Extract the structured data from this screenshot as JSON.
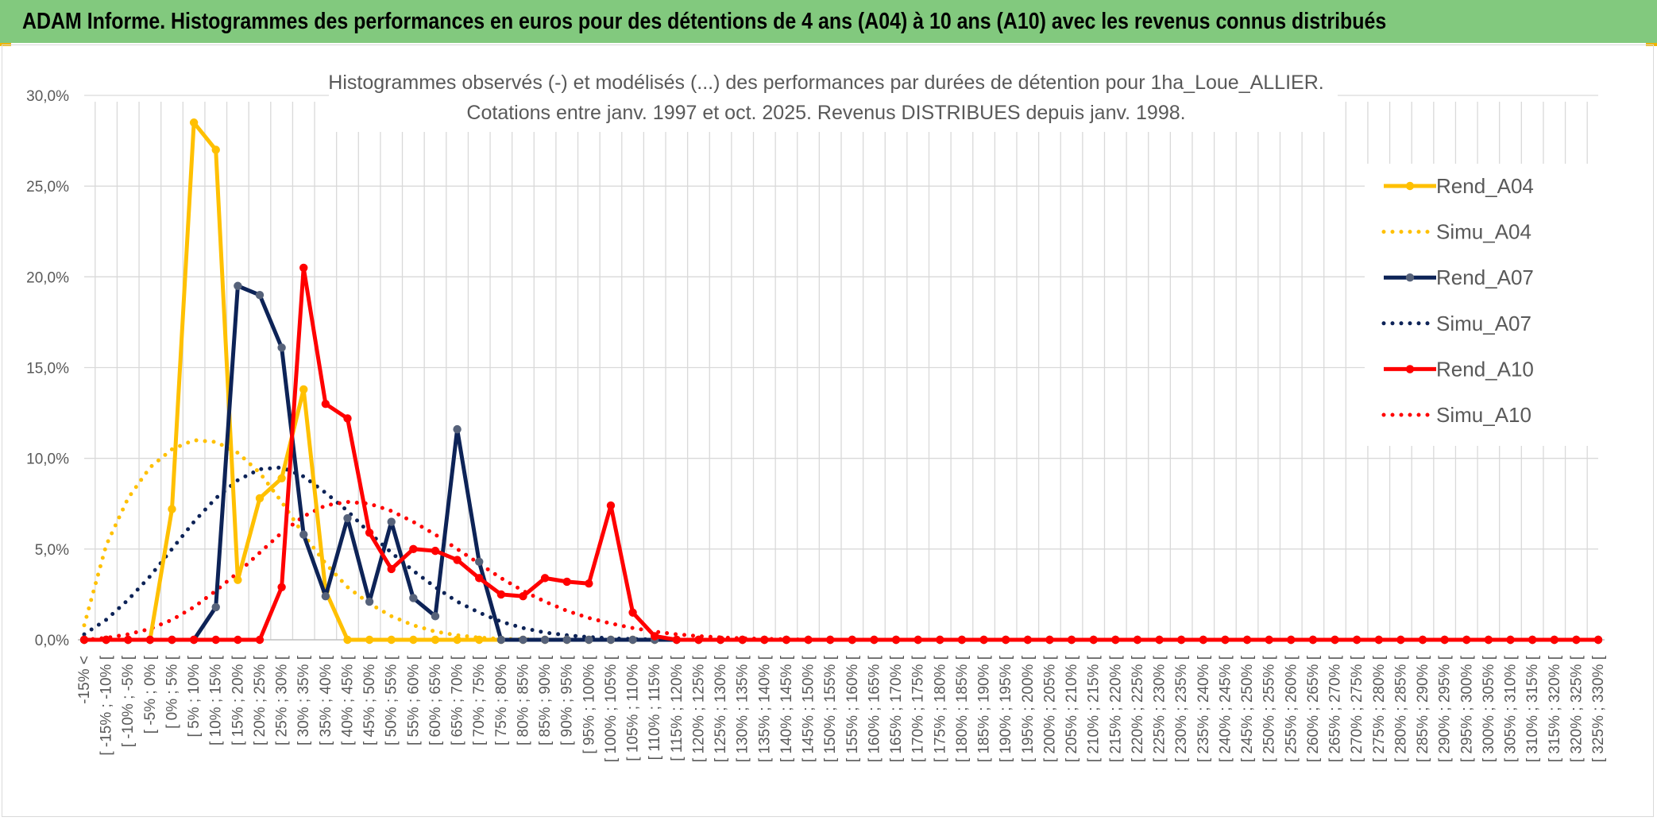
{
  "banner": {
    "title": "ADAM Informe. Histogrammes des performances en euros pour des détentions de 4 ans (A04) à 10 ans (A10) avec les revenus connus distribués"
  },
  "chart_data": {
    "type": "line",
    "title": "Histogrammes observés (-) et modélisés (...) des performances par durées de détention pour 1ha_Loue_ALLIER.",
    "subtitle": "Cotations entre janv. 1997 et oct. 2025.  Revenus DISTRIBUES depuis janv. 1998.",
    "xlabel": "",
    "ylabel": "",
    "ylim": [
      0,
      30
    ],
    "y_ticks": [
      "0,0%",
      "5,0%",
      "10,0%",
      "15,0%",
      "20,0%",
      "25,0%",
      "30,0%"
    ],
    "grid": true,
    "legend_position": "right",
    "categories": [
      "-15% <",
      "[ -15% ; -10% [",
      "[ -10% ; -5% [",
      "[ -5% ; 0% [",
      "[ 0% ; 5% [",
      "[ 5% ; 10% [",
      "[ 10% ; 15% [",
      "[ 15% ; 20% [",
      "[ 20% ; 25% [",
      "[ 25% ; 30% [",
      "[ 30% ; 35% [",
      "[ 35% ; 40% [",
      "[ 40% ; 45% [",
      "[ 45% ; 50% [",
      "[ 50% ; 55% [",
      "[ 55% ; 60% [",
      "[ 60% ; 65% [",
      "[ 65% ; 70% [",
      "[ 70% ; 75% [",
      "[ 75% ; 80% [",
      "[ 80% ; 85% [",
      "[ 85% ; 90% [",
      "[ 90% ; 95% [",
      "[ 95% ; 100% [",
      "[ 100% ; 105% [",
      "[ 105% ; 110% [",
      "[ 110% ; 115% [",
      "[ 115% ; 120% [",
      "[ 120% ; 125% [",
      "[ 125% ; 130% [",
      "[ 130% ; 135% [",
      "[ 135% ; 140% [",
      "[ 140% ; 145% [",
      "[ 145% ; 150% [",
      "[ 150% ; 155% [",
      "[ 155% ; 160% [",
      "[ 160% ; 165% [",
      "[ 165% ; 170% [",
      "[ 170% ; 175% [",
      "[ 175% ; 180% [",
      "[ 180% ; 185% [",
      "[ 185% ; 190% [",
      "[ 190% ; 195% [",
      "[ 195% ; 200% [",
      "[ 200% ; 205% [",
      "[ 205% ; 210% [",
      "[ 210% ; 215% [",
      "[ 215% ; 220% [",
      "[ 220% ; 225% [",
      "[ 225% ; 230% [",
      "[ 230% ; 235% [",
      "[ 235% ; 240% [",
      "[ 240% ; 245% [",
      "[ 245% ; 250% [",
      "[ 250% ; 255% [",
      "[ 255% ; 260% [",
      "[ 260% ; 265% [",
      "[ 265% ; 270% [",
      "[ 270% ; 275% [",
      "[ 275% ; 280% [",
      "[ 280% ; 285% [",
      "[ 285% ; 290% [",
      "[ 290% ; 295% [",
      "[ 295% ; 300% [",
      "[ 300% ; 305% [",
      "[ 305% ; 310% [",
      "[ 310% ; 315% [",
      "[ 315% ; 320% [",
      "[ 320% ; 325% [",
      "[ 325% ; 330% ["
    ],
    "series": [
      {
        "name": "Rend_A04",
        "color": "#ffc000",
        "style": "solid",
        "markers": true,
        "values": [
          0,
          0,
          0,
          0,
          7.2,
          28.5,
          27,
          3.3,
          7.8,
          8.9,
          13.8,
          2.7,
          0,
          0,
          0,
          0,
          0,
          0,
          0,
          0,
          0,
          0,
          0,
          0,
          0,
          0,
          0,
          0,
          0,
          0,
          0,
          0,
          0,
          0,
          0,
          0,
          0,
          0,
          0,
          0,
          0,
          0,
          0,
          0,
          0,
          0,
          0,
          0,
          0,
          0,
          0,
          0,
          0,
          0,
          0,
          0,
          0,
          0,
          0,
          0,
          0,
          0,
          0,
          0,
          0,
          0,
          0,
          0,
          0,
          0
        ]
      },
      {
        "name": "Simu_A04",
        "color": "#ffc000",
        "style": "dotted",
        "markers": false,
        "values": [
          0.8,
          5.2,
          7.8,
          9.5,
          10.5,
          11,
          10.9,
          10.3,
          9.2,
          7.6,
          5.8,
          4.2,
          2.9,
          2,
          1.3,
          0.8,
          0.45,
          0.25,
          0.12,
          0.05,
          0.02,
          0,
          0,
          0,
          0,
          0,
          0,
          0,
          0,
          0,
          0,
          0,
          0,
          0,
          0,
          0,
          0,
          0,
          0,
          0,
          0,
          0,
          0,
          0,
          0,
          0,
          0,
          0,
          0,
          0,
          0,
          0,
          0,
          0,
          0,
          0,
          0,
          0,
          0,
          0,
          0,
          0,
          0,
          0,
          0,
          0,
          0,
          0,
          0,
          0
        ]
      },
      {
        "name": "Rend_A07",
        "color": "#0d2357",
        "style": "solid",
        "markers": true,
        "values": [
          0,
          0,
          0,
          0,
          0,
          0,
          1.8,
          19.5,
          19,
          16.1,
          5.8,
          2.4,
          6.7,
          2.1,
          6.5,
          2.3,
          1.3,
          11.6,
          4.3,
          0,
          0,
          0,
          0,
          0,
          0,
          0,
          0,
          0,
          0,
          0,
          0,
          0,
          0,
          0,
          0,
          0,
          0,
          0,
          0,
          0,
          0,
          0,
          0,
          0,
          0,
          0,
          0,
          0,
          0,
          0,
          0,
          0,
          0,
          0,
          0,
          0,
          0,
          0,
          0,
          0,
          0,
          0,
          0,
          0,
          0,
          0,
          0,
          0,
          0,
          0
        ]
      },
      {
        "name": "Simu_A07",
        "color": "#0d2357",
        "style": "dotted",
        "markers": false,
        "values": [
          0.3,
          1.1,
          2.2,
          3.5,
          5,
          6.5,
          7.8,
          8.8,
          9.4,
          9.5,
          9,
          8.1,
          7.1,
          5.9,
          4.8,
          3.8,
          2.9,
          2.1,
          1.5,
          1,
          0.65,
          0.4,
          0.25,
          0.15,
          0.08,
          0.04,
          0.02,
          0,
          0,
          0,
          0,
          0,
          0,
          0,
          0,
          0,
          0,
          0,
          0,
          0,
          0,
          0,
          0,
          0,
          0,
          0,
          0,
          0,
          0,
          0,
          0,
          0,
          0,
          0,
          0,
          0,
          0,
          0,
          0,
          0,
          0,
          0,
          0,
          0,
          0,
          0,
          0,
          0,
          0,
          0
        ]
      },
      {
        "name": "Rend_A10",
        "color": "#ff0000",
        "style": "solid",
        "markers": true,
        "values": [
          0,
          0,
          0,
          0,
          0,
          0,
          0,
          0,
          0,
          2.9,
          20.5,
          13,
          12.2,
          5.9,
          3.9,
          5,
          4.9,
          4.4,
          3.4,
          2.5,
          2.4,
          3.4,
          3.2,
          3.1,
          7.4,
          1.5,
          0.2,
          0,
          0,
          0,
          0,
          0,
          0,
          0,
          0,
          0,
          0,
          0,
          0,
          0,
          0,
          0,
          0,
          0,
          0,
          0,
          0,
          0,
          0,
          0,
          0,
          0,
          0,
          0,
          0,
          0,
          0,
          0,
          0,
          0,
          0,
          0,
          0,
          0,
          0,
          0,
          0,
          0,
          0,
          0
        ]
      },
      {
        "name": "Simu_A10",
        "color": "#ff0000",
        "style": "dotted",
        "markers": false,
        "values": [
          0,
          0.1,
          0.3,
          0.6,
          1.1,
          1.8,
          2.7,
          3.7,
          4.8,
          5.9,
          6.8,
          7.4,
          7.6,
          7.5,
          7.1,
          6.5,
          5.8,
          5,
          4.2,
          3.4,
          2.7,
          2.1,
          1.6,
          1.2,
          0.9,
          0.65,
          0.45,
          0.3,
          0.2,
          0.13,
          0.08,
          0.05,
          0.03,
          0,
          0,
          0,
          0,
          0,
          0,
          0,
          0,
          0,
          0,
          0,
          0,
          0,
          0,
          0,
          0,
          0,
          0,
          0,
          0,
          0,
          0,
          0,
          0,
          0,
          0,
          0,
          0,
          0,
          0,
          0,
          0,
          0,
          0,
          0,
          0,
          0
        ]
      }
    ]
  }
}
